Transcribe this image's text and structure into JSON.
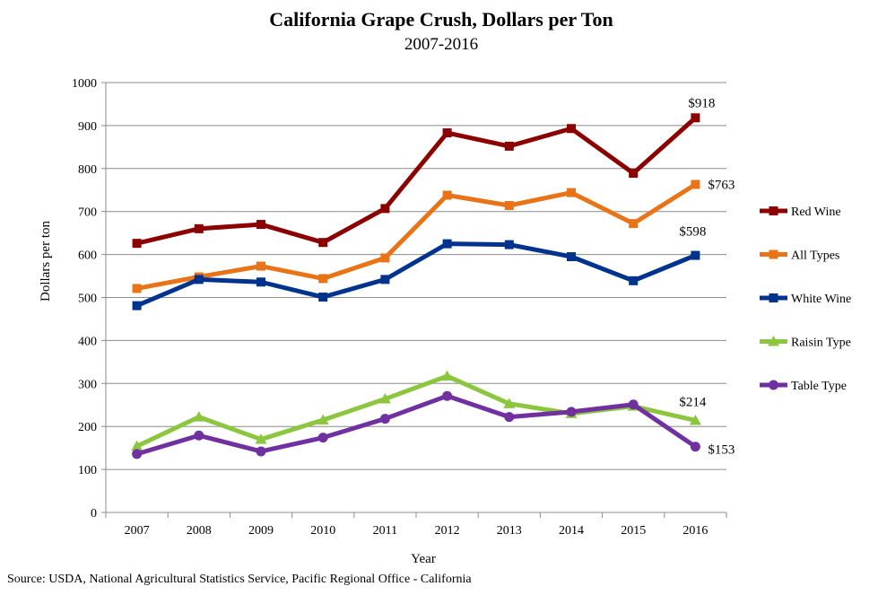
{
  "chart_data": {
    "type": "line",
    "title": "California Grape Crush, Dollars per Ton",
    "subtitle": "2007-2016",
    "xlabel": "Year",
    "ylabel": "Dollars per ton",
    "categories": [
      "2007",
      "2008",
      "2009",
      "2010",
      "2011",
      "2012",
      "2013",
      "2014",
      "2015",
      "2016"
    ],
    "ylim": [
      0,
      1000
    ],
    "yticks": [
      "0",
      "100",
      "200",
      "300",
      "400",
      "500",
      "600",
      "700",
      "800",
      "900",
      "1000"
    ],
    "grid": true,
    "legend_position": "right",
    "series": [
      {
        "name": "Red Wine",
        "color": "#8b0000",
        "marker": "square",
        "values": [
          626,
          660,
          670,
          628,
          707,
          883,
          852,
          893,
          789,
          918
        ],
        "end_label": "$918"
      },
      {
        "name": "All Types",
        "color": "#e97418",
        "marker": "square",
        "values": [
          521,
          548,
          573,
          544,
          592,
          738,
          714,
          744,
          672,
          763
        ],
        "end_label": "$763"
      },
      {
        "name": "White Wine",
        "color": "#00338d",
        "marker": "square",
        "values": [
          481,
          542,
          536,
          501,
          542,
          625,
          623,
          595,
          539,
          598
        ],
        "end_label": "$598"
      },
      {
        "name": "Raisin Type",
        "color": "#8cc63f",
        "marker": "triangle",
        "values": [
          154,
          222,
          170,
          215,
          264,
          317,
          253,
          230,
          247,
          214
        ],
        "end_label": "$214"
      },
      {
        "name": "Table Type",
        "color": "#7030a0",
        "marker": "circle",
        "values": [
          136,
          179,
          142,
          174,
          218,
          271,
          222,
          234,
          251,
          153
        ],
        "end_label": "$153"
      }
    ]
  },
  "source": "Source: USDA, National Agricultural Statistics Service, Pacific Regional Office - California"
}
